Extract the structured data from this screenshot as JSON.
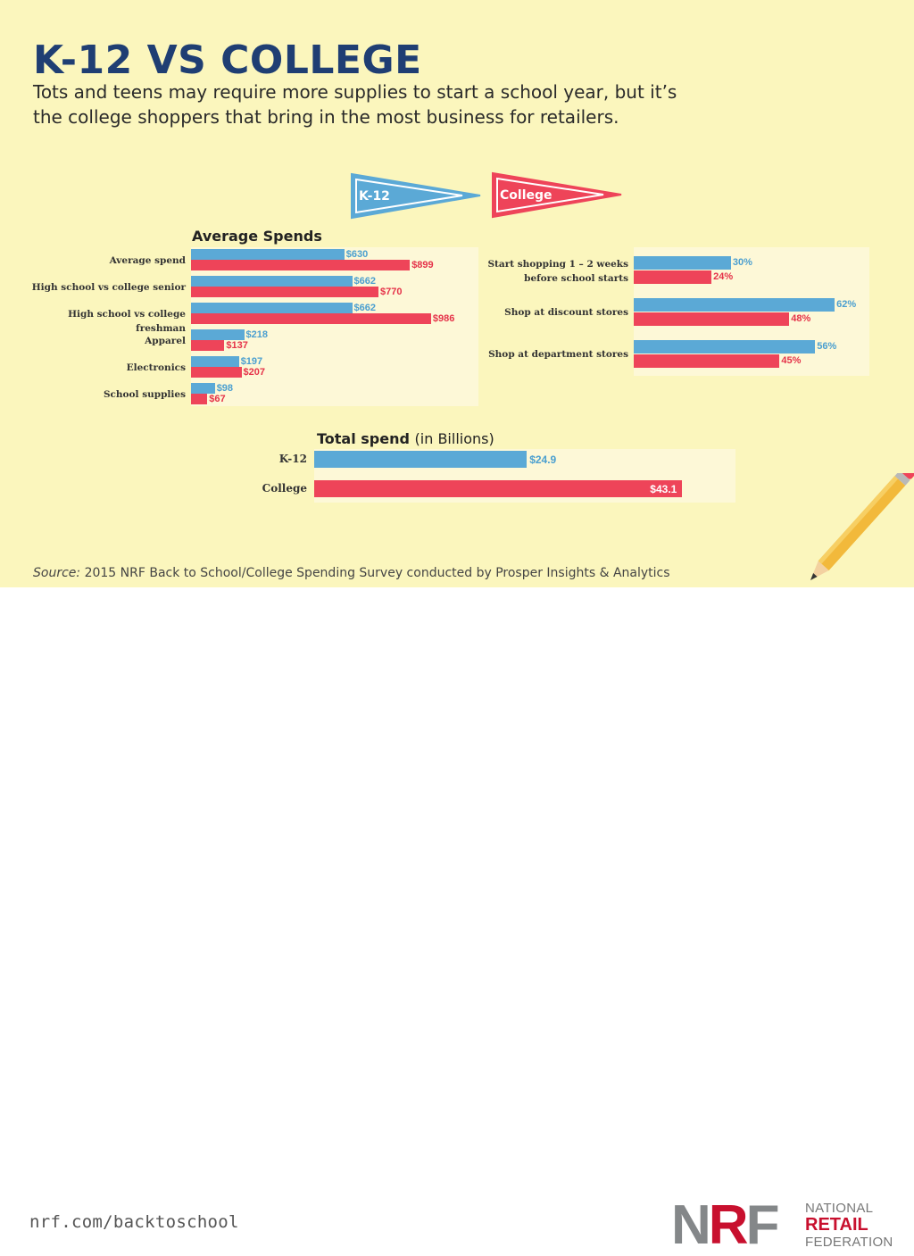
{
  "title": "K-12 VS COLLEGE",
  "subtitle": "Tots and teens may require more supplies to start a school year, but it’s the college shoppers that bring in the most business for retailers.",
  "legend": {
    "k12": "K-12",
    "college": "College"
  },
  "colors": {
    "k12": "#5ba9d6",
    "college": "#ee4459",
    "background": "#fbf6bd",
    "title": "#1f3e73"
  },
  "chart_data": [
    {
      "type": "bar",
      "orientation": "horizontal",
      "title": "Average Spends",
      "categories": [
        "Average spend",
        "High school vs college senior",
        "High school vs college freshman",
        "Apparel",
        "Electronics",
        "School supplies"
      ],
      "series": [
        {
          "name": "K-12",
          "values": [
            630,
            662,
            662,
            218,
            197,
            98
          ],
          "labels": [
            "$630",
            "$662",
            "$662",
            "$218",
            "$197",
            "$98"
          ]
        },
        {
          "name": "College",
          "values": [
            899,
            770,
            986,
            137,
            207,
            67
          ],
          "labels": [
            "$899",
            "$770",
            "$986",
            "$137",
            "$207",
            "$67"
          ]
        }
      ],
      "xlim": [
        0,
        1100
      ]
    },
    {
      "type": "bar",
      "orientation": "horizontal",
      "title": "",
      "categories": [
        "Start shopping 1 – 2 weeks before school starts",
        "Shop at discount stores",
        "Shop at department stores"
      ],
      "series": [
        {
          "name": "K-12",
          "values": [
            30,
            62,
            56
          ],
          "labels": [
            "30%",
            "62%",
            "56%"
          ]
        },
        {
          "name": "College",
          "values": [
            24,
            48,
            45
          ],
          "labels": [
            "24%",
            "48%",
            "45%"
          ]
        }
      ],
      "xlim": [
        0,
        65
      ]
    },
    {
      "type": "bar",
      "orientation": "horizontal",
      "title": "Total spend",
      "title_suffix": "(in Billions)",
      "categories": [
        "K-12",
        "College"
      ],
      "values": [
        24.9,
        43.1
      ],
      "labels": [
        "$24.9",
        "$43.1"
      ],
      "xlim": [
        0,
        46
      ]
    }
  ],
  "source": {
    "prefix": "Source:",
    "text": "2015 NRF Back to School/College Spending Survey conducted by Prosper Insights & Analytics"
  },
  "footer": {
    "url": "nrf.com/backtoschool",
    "logo": {
      "letters_gray": "N",
      "letter_red": "R",
      "letters_gray2": "F",
      "line1": "NATIONAL",
      "line2": "RETAIL",
      "line3": "FEDERATION"
    }
  }
}
